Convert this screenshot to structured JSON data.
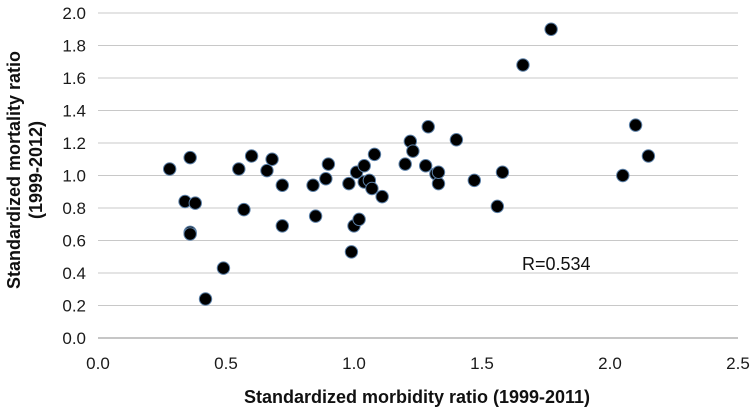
{
  "chart_data": {
    "type": "scatter",
    "xlabel": "Standardized morbidity ratio (1999-2011)",
    "ylabel_lines": [
      "Standardized mortality ratio",
      "(1999-2012)"
    ],
    "xlim": [
      0.0,
      2.5
    ],
    "ylim": [
      0.0,
      2.0
    ],
    "xticks": [
      "0.0",
      "0.5",
      "1.0",
      "1.5",
      "2.0",
      "2.5"
    ],
    "yticks": [
      "0.0",
      "0.2",
      "0.4",
      "0.6",
      "0.8",
      "1.0",
      "1.2",
      "1.4",
      "1.6",
      "1.8",
      "2.0"
    ],
    "grid": "horizontal",
    "annotation": "R=0.534",
    "marker_color": "#000000",
    "marker_edge": "#5b7fa6",
    "points": [
      {
        "x": 0.28,
        "y": 1.04
      },
      {
        "x": 0.34,
        "y": 0.84
      },
      {
        "x": 0.36,
        "y": 1.11
      },
      {
        "x": 0.36,
        "y": 0.65
      },
      {
        "x": 0.36,
        "y": 0.64
      },
      {
        "x": 0.38,
        "y": 0.83
      },
      {
        "x": 0.42,
        "y": 0.24
      },
      {
        "x": 0.49,
        "y": 0.43
      },
      {
        "x": 0.55,
        "y": 1.04
      },
      {
        "x": 0.57,
        "y": 0.79
      },
      {
        "x": 0.6,
        "y": 1.12
      },
      {
        "x": 0.66,
        "y": 1.03
      },
      {
        "x": 0.68,
        "y": 1.1
      },
      {
        "x": 0.72,
        "y": 0.94
      },
      {
        "x": 0.72,
        "y": 0.69
      },
      {
        "x": 0.84,
        "y": 0.94
      },
      {
        "x": 0.85,
        "y": 0.75
      },
      {
        "x": 0.89,
        "y": 0.98
      },
      {
        "x": 0.9,
        "y": 1.07
      },
      {
        "x": 0.98,
        "y": 0.95
      },
      {
        "x": 0.99,
        "y": 0.53
      },
      {
        "x": 1.0,
        "y": 0.69
      },
      {
        "x": 1.01,
        "y": 1.02
      },
      {
        "x": 1.02,
        "y": 0.73
      },
      {
        "x": 1.04,
        "y": 0.96
      },
      {
        "x": 1.04,
        "y": 1.06
      },
      {
        "x": 1.06,
        "y": 0.97
      },
      {
        "x": 1.07,
        "y": 0.92
      },
      {
        "x": 1.08,
        "y": 1.13
      },
      {
        "x": 1.11,
        "y": 0.87
      },
      {
        "x": 1.2,
        "y": 1.07
      },
      {
        "x": 1.22,
        "y": 1.21
      },
      {
        "x": 1.23,
        "y": 1.15
      },
      {
        "x": 1.28,
        "y": 1.06
      },
      {
        "x": 1.29,
        "y": 1.3
      },
      {
        "x": 1.32,
        "y": 1.01
      },
      {
        "x": 1.33,
        "y": 0.95
      },
      {
        "x": 1.33,
        "y": 1.02
      },
      {
        "x": 1.4,
        "y": 1.22
      },
      {
        "x": 1.47,
        "y": 0.97
      },
      {
        "x": 1.56,
        "y": 0.81
      },
      {
        "x": 1.58,
        "y": 1.02
      },
      {
        "x": 1.66,
        "y": 1.68
      },
      {
        "x": 1.77,
        "y": 1.9
      },
      {
        "x": 2.05,
        "y": 1.0
      },
      {
        "x": 2.1,
        "y": 1.31
      },
      {
        "x": 2.15,
        "y": 1.12
      }
    ]
  }
}
